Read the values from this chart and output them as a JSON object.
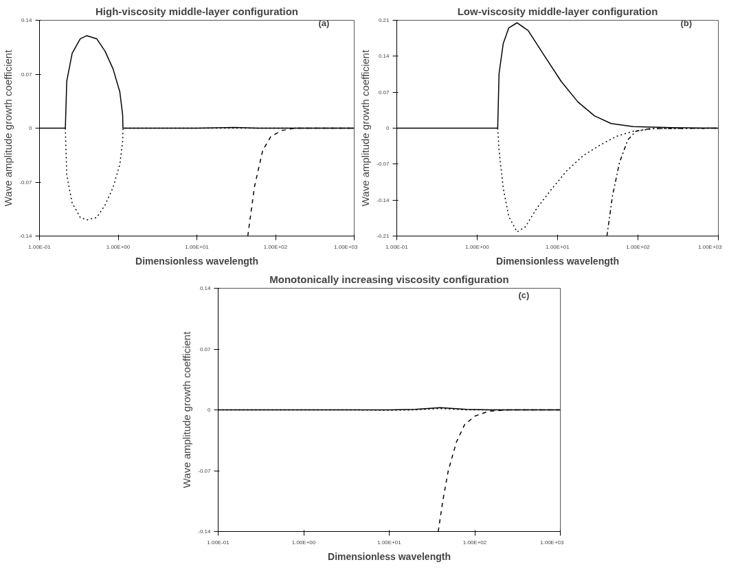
{
  "chart_data": [
    {
      "type": "line",
      "title": "High-viscosity middle-layer configuration",
      "xlabel": "Dimensionless wavelength",
      "ylabel": "Wave amplitude growth coefficient",
      "annotations": [
        "(a)"
      ],
      "log": "x",
      "grid": false,
      "xlim": [
        0.1,
        1000
      ],
      "xticks": [
        {
          "value": 0.1,
          "label": "1.00E-01"
        },
        {
          "value": 1,
          "label": "1.00E+00"
        },
        {
          "value": 10,
          "label": "1.00E+01"
        },
        {
          "value": 100,
          "label": "1.00E+02"
        },
        {
          "value": 1000,
          "label": "1.00E+03"
        }
      ],
      "ylim": [
        -0.14,
        0.14
      ],
      "yticks": [
        -0.14,
        -0.07,
        0,
        0.07,
        0.14
      ],
      "series": [
        {
          "color": "#000000",
          "line_style": "solid",
          "x": [
            0.1,
            0.213,
            0.222,
            0.26,
            0.33,
            0.4,
            0.533,
            0.68,
            0.86,
            1.05,
            1.14,
            1.15,
            10,
            30,
            60,
            1000
          ],
          "values": [
            0,
            0,
            0.061,
            0.097,
            0.116,
            0.12,
            0.116,
            0.1,
            0.077,
            0.047,
            0.017,
            0,
            0,
            0.001,
            0,
            0
          ]
        },
        {
          "color": "#000000",
          "line_style": "dotted",
          "x": [
            0.213,
            0.222,
            0.26,
            0.33,
            0.4,
            0.533,
            0.68,
            0.86,
            1.05,
            1.14,
            1.15,
            1000
          ],
          "values": [
            0,
            -0.061,
            -0.097,
            -0.116,
            -0.119,
            -0.116,
            -0.1,
            -0.077,
            -0.047,
            -0.017,
            0,
            0
          ]
        },
        {
          "color": "#000000",
          "line_style": "dashed",
          "x": [
            44.4,
            54,
            68.7,
            87,
            120,
            178,
            1000
          ],
          "values": [
            -0.14,
            -0.076,
            -0.029,
            -0.011,
            -0.003,
            0,
            0
          ]
        }
      ]
    },
    {
      "type": "line",
      "title": "Low-viscosity middle-layer configuration",
      "xlabel": "Dimensionless wavelength",
      "ylabel": "Wave amplitude growth coefficient",
      "annotations": [
        "(b)"
      ],
      "log": "x",
      "grid": false,
      "xlim": [
        0.1,
        1000
      ],
      "xticks": [
        {
          "value": 0.1,
          "label": "1.00E-01"
        },
        {
          "value": 1,
          "label": "1.00E+00"
        },
        {
          "value": 10,
          "label": "1.00E+01"
        },
        {
          "value": 100,
          "label": "1.00E+02"
        },
        {
          "value": 1000,
          "label": "1.00E+03"
        }
      ],
      "ylim": [
        -0.21,
        0.21
      ],
      "yticks": [
        -0.21,
        -0.14,
        -0.07,
        0,
        0.07,
        0.14,
        0.21
      ],
      "series": [
        {
          "color": "#000000",
          "line_style": "solid",
          "x": [
            0.1,
            1.8,
            1.87,
            2.11,
            2.47,
            3.13,
            4.3,
            6.92,
            11.1,
            17.9,
            28.8,
            46.3,
            87,
            265,
            1000
          ],
          "values": [
            0,
            0,
            0.106,
            0.165,
            0.195,
            0.205,
            0.19,
            0.14,
            0.091,
            0.051,
            0.024,
            0.009,
            0.003,
            0.001,
            0
          ]
        },
        {
          "color": "#000000",
          "line_style": "dotted",
          "x": [
            1.8,
            1.87,
            2.11,
            2.47,
            3.13,
            3.98,
            5.46,
            8.1,
            13,
            21,
            33.7,
            54,
            87,
            160,
            1000
          ],
          "values": [
            0,
            -0.043,
            -0.117,
            -0.172,
            -0.202,
            -0.192,
            -0.157,
            -0.122,
            -0.083,
            -0.053,
            -0.033,
            -0.016,
            -0.006,
            -0.001,
            0
          ]
        },
        {
          "color": "#000000",
          "line_style": "dashdot",
          "x": [
            41.1,
            48.2,
            58.7,
            74.5,
            94.4,
            140,
            1000
          ],
          "values": [
            -0.21,
            -0.132,
            -0.068,
            -0.023,
            -0.006,
            -0.001,
            0
          ]
        }
      ]
    },
    {
      "type": "line",
      "title": "Monotonically increasing viscosity configuration",
      "xlabel": "Dimensionless wavelength",
      "ylabel": "Wave amplitude growth coefficient",
      "annotations": [
        "(c)"
      ],
      "log": "x",
      "grid": false,
      "xlim": [
        0.1,
        1000
      ],
      "xticks": [
        {
          "value": 0.1,
          "label": "1.00E-01"
        },
        {
          "value": 1,
          "label": "1.00E+00"
        },
        {
          "value": 10,
          "label": "1.00E+01"
        },
        {
          "value": 100,
          "label": "1.00E+02"
        },
        {
          "value": 1000,
          "label": "1.00E+03"
        }
      ],
      "ylim": [
        -0.14,
        0.14
      ],
      "yticks": [
        -0.14,
        -0.07,
        0,
        0.07,
        0.14
      ],
      "series": [
        {
          "color": "#000000",
          "line_style": "solid",
          "x": [
            0.1,
            10,
            20,
            39.4,
            80,
            150,
            1000
          ],
          "values": [
            0,
            0,
            0.0005,
            0.0025,
            0.0005,
            0,
            0
          ]
        },
        {
          "color": "#000000",
          "line_style": "dotted",
          "x": [
            0.1,
            4,
            10,
            20,
            39.4,
            80,
            150,
            1000
          ],
          "values": [
            0,
            0,
            -0.0005,
            0,
            0.0015,
            0,
            0,
            0
          ]
        },
        {
          "color": "#000000",
          "line_style": "dashed",
          "x": [
            37.4,
            42.4,
            49,
            61,
            76,
            101,
            146,
            250,
            1000
          ],
          "values": [
            -0.14,
            -0.104,
            -0.07,
            -0.037,
            -0.017,
            -0.007,
            -0.0015,
            0,
            0
          ]
        }
      ]
    }
  ]
}
